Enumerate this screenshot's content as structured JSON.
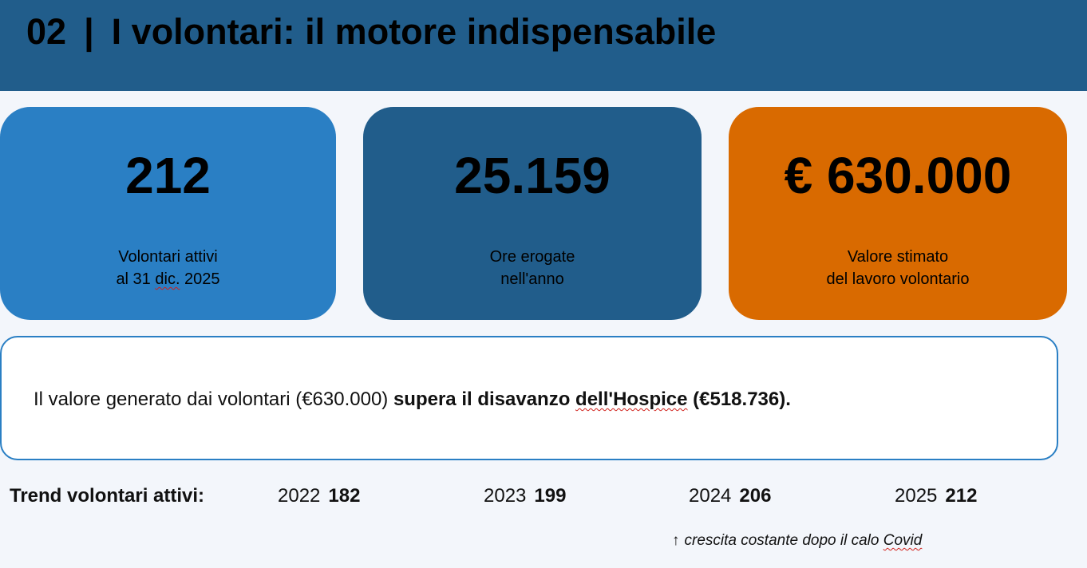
{
  "header": {
    "number": "02",
    "separator": "|",
    "title": "I volontari: il motore indispensabile",
    "background": "#215d8b"
  },
  "stats": [
    {
      "value": "212",
      "label_line1": "Volontari attivi",
      "label_line2_a": "al 31 ",
      "label_line2_b": "dic.",
      "label_line2_c": " 2025",
      "color": "#2a7fc4"
    },
    {
      "value": "25.159",
      "label_line1": "Ore erogate",
      "label_line2": "nell'anno",
      "color": "#215d8b"
    },
    {
      "value": "€ 630.000",
      "label_line1": "Valore stimato",
      "label_line2": "del lavoro volontario",
      "color": "#d96a00"
    }
  ],
  "callout": {
    "text_plain": "Il valore generato dai volontari (€630.000) ",
    "text_bold_a": "supera il disavanzo ",
    "text_bold_b": "dell'Hospice",
    "text_bold_c": " (€518.736)."
  },
  "trend": {
    "label": "Trend volontari attivi:",
    "items": [
      {
        "year": "2022",
        "value": "182"
      },
      {
        "year": "2023",
        "value": "199"
      },
      {
        "year": "2024",
        "value": "206"
      },
      {
        "year": "2025",
        "value": "212"
      }
    ],
    "note_arrow": "↑",
    "note_text": "crescita costante dopo il calo ",
    "note_word": "Covid"
  }
}
